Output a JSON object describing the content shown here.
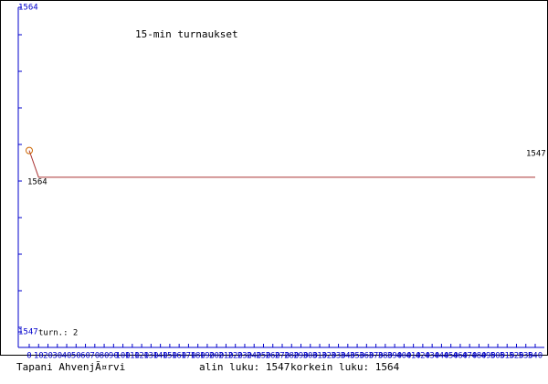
{
  "chart_data": {
    "type": "line",
    "title": "15-min turnaukset",
    "x": [
      0,
      10,
      540
    ],
    "series": [
      {
        "name": null,
        "color": "#aa3333",
        "values": [
          1556.5,
          1555.1,
          1555.1
        ]
      }
    ],
    "xlim": [
      0,
      540
    ],
    "xticks": [
      0,
      10,
      20,
      30,
      40,
      50,
      60,
      70,
      80,
      90,
      100,
      110,
      120,
      130,
      140,
      150,
      160,
      170,
      180,
      190,
      200,
      210,
      220,
      230,
      240,
      250,
      260,
      270,
      280,
      290,
      300,
      310,
      320,
      330,
      340,
      350,
      360,
      370,
      380,
      390,
      400,
      410,
      420,
      430,
      440,
      450,
      460,
      470,
      480,
      490,
      500,
      510,
      520,
      530,
      540
    ],
    "ylim": [
      1547,
      1564
    ],
    "yticks": [
      1547,
      1564
    ],
    "annotations": [
      "1564",
      "1547",
      "turn.: 2"
    ]
  },
  "footer": {
    "author": "Tapani AhvenjÃ¤rvi",
    "low": "alin luku: 1547",
    "high": "korkein luku: 1564"
  }
}
